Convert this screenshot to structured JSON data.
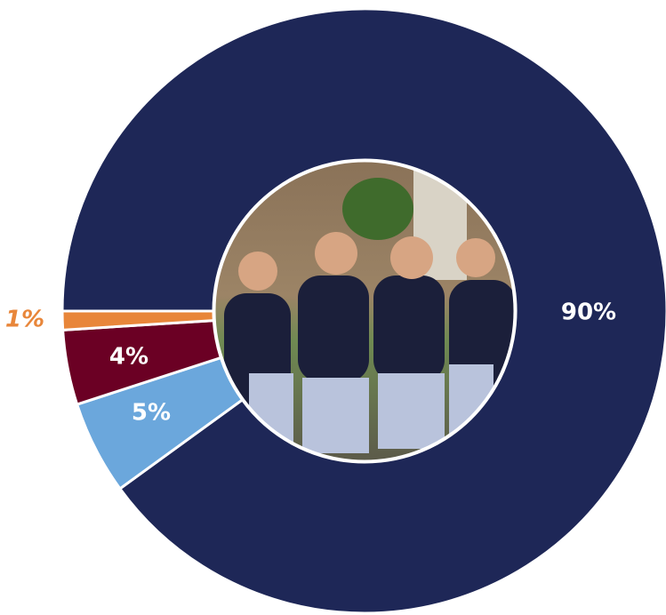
{
  "chart_data": {
    "type": "donut",
    "values": [
      90,
      5,
      4,
      1
    ],
    "value_labels": [
      "90%",
      "5%",
      "4%",
      "1%"
    ],
    "colors": [
      "#1e2757",
      "#6ba7dc",
      "#6b0024",
      "#e8863a"
    ]
  }
}
